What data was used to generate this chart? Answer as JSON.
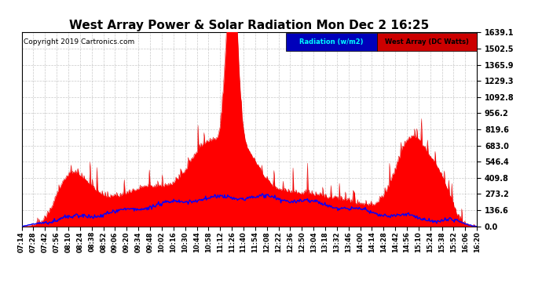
{
  "title": "West Array Power & Solar Radiation Mon Dec 2 16:25",
  "copyright": "Copyright 2019 Cartronics.com",
  "legend_labels": [
    "Radiation (w/m2)",
    "West Array (DC Watts)"
  ],
  "legend_blue_bg": "#0000cc",
  "legend_red_bg": "#cc0000",
  "y_ticks": [
    0.0,
    136.6,
    273.2,
    409.8,
    546.4,
    683.0,
    819.6,
    956.2,
    1092.8,
    1229.3,
    1365.9,
    1502.5,
    1639.1
  ],
  "y_max": 1639.1,
  "y_min": 0.0,
  "bg_color": "#ffffff",
  "plot_bg_color": "#ffffff",
  "grid_color": "#bbbbbb",
  "title_fontsize": 11,
  "x_tick_labels": [
    "07:14",
    "07:28",
    "07:42",
    "07:56",
    "08:10",
    "08:24",
    "08:38",
    "08:52",
    "09:06",
    "09:20",
    "09:34",
    "09:48",
    "10:02",
    "10:16",
    "10:30",
    "10:44",
    "10:58",
    "11:12",
    "11:26",
    "11:40",
    "11:54",
    "12:08",
    "12:22",
    "12:36",
    "12:50",
    "13:04",
    "13:18",
    "13:32",
    "13:46",
    "14:00",
    "14:14",
    "14:28",
    "14:42",
    "14:56",
    "15:10",
    "15:24",
    "15:38",
    "15:52",
    "16:06",
    "16:20"
  ]
}
